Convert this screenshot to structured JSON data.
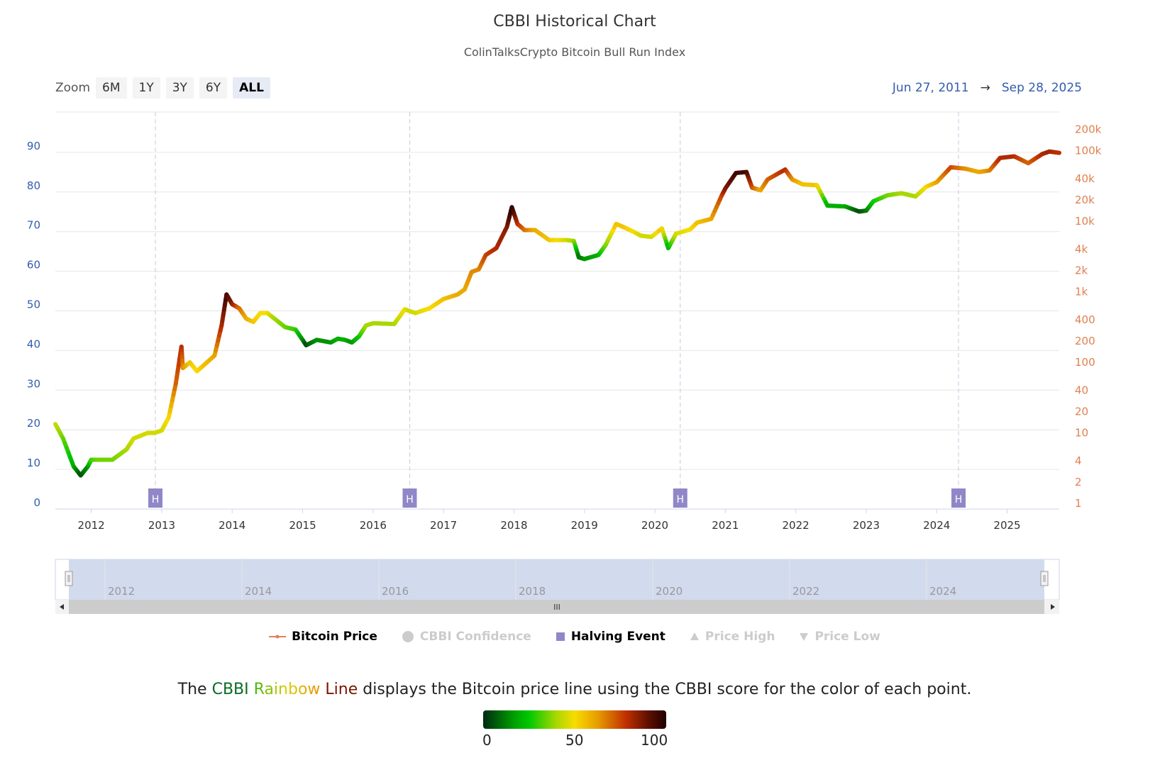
{
  "title": "CBBI Historical Chart",
  "subtitle": "ColinTalksCrypto Bitcoin Bull Run Index",
  "zoom": {
    "label": "Zoom",
    "buttons": [
      "6M",
      "1Y",
      "3Y",
      "6Y",
      "ALL"
    ],
    "active": "ALL"
  },
  "range": {
    "from": "Jun 27, 2011",
    "arrow": "→",
    "to": "Sep 28, 2025"
  },
  "legend": [
    {
      "label": "Bitcoin Price",
      "active": true
    },
    {
      "label": "CBBI Confidence",
      "active": false
    },
    {
      "label": "Halving Event",
      "active": true
    },
    {
      "label": "Price High",
      "active": false
    },
    {
      "label": "Price Low",
      "active": false
    }
  ],
  "caption": {
    "pre": "The ",
    "w1": "CBBI",
    "w2": "Rainbow",
    "w3": "Line",
    "post": " displays the Bitcoin price line using the CBBI score for the color of each point."
  },
  "colorbar": {
    "labels": [
      "0",
      "50",
      "100"
    ]
  },
  "navigator": {
    "labels": [
      "2012",
      "2014",
      "2016",
      "2018",
      "2020",
      "2022",
      "2024"
    ],
    "scroll_grip": "III"
  },
  "colors": {
    "halving": "#9087c8",
    "left_axis": "#335cad",
    "right_axis": "#e08050"
  },
  "chart_data": {
    "type": "line",
    "title": "CBBI Historical Chart",
    "x_ticks": [
      "2012",
      "2013",
      "2014",
      "2015",
      "2016",
      "2017",
      "2018",
      "2019",
      "2020",
      "2021",
      "2022",
      "2023",
      "2024",
      "2025"
    ],
    "xlim": [
      2011.49,
      2025.74
    ],
    "left_axis": {
      "ticks": [
        "0",
        "10",
        "20",
        "30",
        "40",
        "50",
        "60",
        "70",
        "80",
        "90"
      ],
      "ylim": [
        0,
        100
      ]
    },
    "right_axis": {
      "scale": "log",
      "ticks": [
        {
          "v": 1,
          "t": "1"
        },
        {
          "v": 2,
          "t": "2"
        },
        {
          "v": 4,
          "t": "4"
        },
        {
          "v": 10,
          "t": "10"
        },
        {
          "v": 20,
          "t": "20"
        },
        {
          "v": 40,
          "t": "40"
        },
        {
          "v": 100,
          "t": "100"
        },
        {
          "v": 200,
          "t": "200"
        },
        {
          "v": 400,
          "t": "400"
        },
        {
          "v": 1000,
          "t": "1k"
        },
        {
          "v": 2000,
          "t": "2k"
        },
        {
          "v": 4000,
          "t": "4k"
        },
        {
          "v": 10000,
          "t": "10k"
        },
        {
          "v": 20000,
          "t": "20k"
        },
        {
          "v": 40000,
          "t": "40k"
        },
        {
          "v": 100000,
          "t": "100k"
        },
        {
          "v": 200000,
          "t": "200k"
        }
      ]
    },
    "halvings": [
      {
        "x": 2012.91,
        "label": "H"
      },
      {
        "x": 2016.52,
        "label": "H"
      },
      {
        "x": 2020.36,
        "label": "H"
      },
      {
        "x": 2024.31,
        "label": "H"
      }
    ],
    "series": [
      {
        "name": "Bitcoin Price",
        "columns": [
          "year",
          "price",
          "cbbi"
        ],
        "points": [
          [
            2011.49,
            16,
            45
          ],
          [
            2011.6,
            10,
            35
          ],
          [
            2011.75,
            4,
            20
          ],
          [
            2011.85,
            3,
            5
          ],
          [
            2011.95,
            4,
            15
          ],
          [
            2012.0,
            5,
            30
          ],
          [
            2012.1,
            5,
            35
          ],
          [
            2012.3,
            5,
            35
          ],
          [
            2012.5,
            7,
            40
          ],
          [
            2012.6,
            10,
            45
          ],
          [
            2012.8,
            12,
            45
          ],
          [
            2012.9,
            12,
            45
          ],
          [
            2013.0,
            13,
            45
          ],
          [
            2013.1,
            20,
            50
          ],
          [
            2013.2,
            60,
            70
          ],
          [
            2013.28,
            200,
            80
          ],
          [
            2013.3,
            100,
            65
          ],
          [
            2013.4,
            120,
            55
          ],
          [
            2013.5,
            90,
            50
          ],
          [
            2013.6,
            110,
            55
          ],
          [
            2013.75,
            150,
            60
          ],
          [
            2013.85,
            400,
            80
          ],
          [
            2013.92,
            1100,
            95
          ],
          [
            2014.0,
            800,
            85
          ],
          [
            2014.1,
            700,
            70
          ],
          [
            2014.2,
            500,
            60
          ],
          [
            2014.3,
            450,
            55
          ],
          [
            2014.4,
            600,
            50
          ],
          [
            2014.5,
            600,
            50
          ],
          [
            2014.6,
            500,
            40
          ],
          [
            2014.75,
            380,
            35
          ],
          [
            2014.9,
            350,
            30
          ],
          [
            2015.0,
            250,
            15
          ],
          [
            2015.05,
            210,
            5
          ],
          [
            2015.2,
            250,
            15
          ],
          [
            2015.4,
            230,
            15
          ],
          [
            2015.5,
            260,
            20
          ],
          [
            2015.6,
            250,
            20
          ],
          [
            2015.7,
            230,
            15
          ],
          [
            2015.8,
            280,
            25
          ],
          [
            2015.9,
            400,
            40
          ],
          [
            2016.0,
            430,
            40
          ],
          [
            2016.3,
            420,
            40
          ],
          [
            2016.45,
            680,
            50
          ],
          [
            2016.5,
            650,
            45
          ],
          [
            2016.6,
            600,
            45
          ],
          [
            2016.8,
            700,
            50
          ],
          [
            2017.0,
            950,
            55
          ],
          [
            2017.2,
            1100,
            60
          ],
          [
            2017.3,
            1300,
            60
          ],
          [
            2017.4,
            2300,
            65
          ],
          [
            2017.5,
            2500,
            65
          ],
          [
            2017.6,
            4000,
            75
          ],
          [
            2017.75,
            5000,
            80
          ],
          [
            2017.9,
            10000,
            85
          ],
          [
            2017.97,
            19000,
            100
          ],
          [
            2018.05,
            11000,
            80
          ],
          [
            2018.15,
            9000,
            70
          ],
          [
            2018.3,
            9000,
            60
          ],
          [
            2018.5,
            6500,
            55
          ],
          [
            2018.75,
            6500,
            45
          ],
          [
            2018.85,
            6300,
            40
          ],
          [
            2018.92,
            3700,
            10
          ],
          [
            2019.0,
            3500,
            15
          ],
          [
            2019.2,
            4000,
            20
          ],
          [
            2019.3,
            5500,
            35
          ],
          [
            2019.45,
            11000,
            55
          ],
          [
            2019.55,
            10000,
            55
          ],
          [
            2019.7,
            8500,
            50
          ],
          [
            2019.8,
            7500,
            45
          ],
          [
            2019.95,
            7200,
            45
          ],
          [
            2020.1,
            9500,
            55
          ],
          [
            2020.19,
            5000,
            20
          ],
          [
            2020.3,
            8000,
            45
          ],
          [
            2020.5,
            9200,
            50
          ],
          [
            2020.6,
            11500,
            55
          ],
          [
            2020.8,
            13000,
            60
          ],
          [
            2020.95,
            28000,
            75
          ],
          [
            2021.0,
            35000,
            85
          ],
          [
            2021.15,
            58000,
            95
          ],
          [
            2021.3,
            60000,
            95
          ],
          [
            2021.38,
            36000,
            75
          ],
          [
            2021.5,
            33000,
            60
          ],
          [
            2021.6,
            47000,
            70
          ],
          [
            2021.85,
            65000,
            80
          ],
          [
            2021.95,
            47000,
            65
          ],
          [
            2022.1,
            40000,
            55
          ],
          [
            2022.3,
            39000,
            55
          ],
          [
            2022.45,
            20000,
            20
          ],
          [
            2022.7,
            19500,
            20
          ],
          [
            2022.9,
            16500,
            5
          ],
          [
            2023.0,
            17000,
            10
          ],
          [
            2023.1,
            23000,
            25
          ],
          [
            2023.3,
            28000,
            35
          ],
          [
            2023.5,
            30000,
            40
          ],
          [
            2023.7,
            27000,
            40
          ],
          [
            2023.85,
            37000,
            50
          ],
          [
            2024.0,
            43000,
            60
          ],
          [
            2024.2,
            70000,
            75
          ],
          [
            2024.4,
            67000,
            65
          ],
          [
            2024.6,
            60000,
            60
          ],
          [
            2024.75,
            63000,
            65
          ],
          [
            2024.9,
            95000,
            80
          ],
          [
            2025.1,
            100000,
            80
          ],
          [
            2025.3,
            80000,
            70
          ],
          [
            2025.5,
            108000,
            80
          ],
          [
            2025.6,
            117000,
            82
          ],
          [
            2025.74,
            112000,
            78
          ]
        ]
      }
    ]
  }
}
